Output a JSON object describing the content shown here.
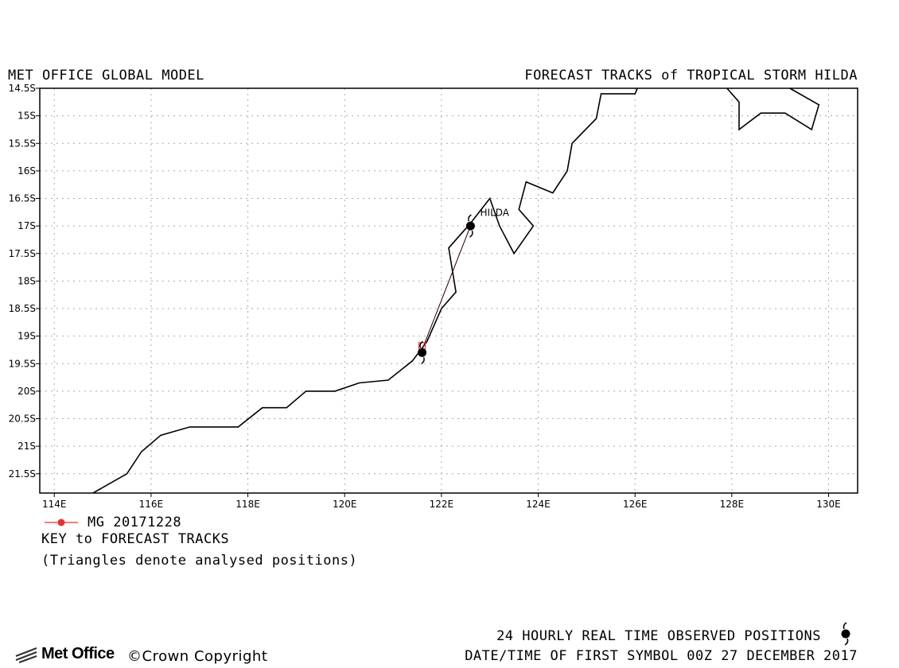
{
  "header": {
    "left": "MET OFFICE GLOBAL MODEL",
    "right": "FORECAST TRACKS of TROPICAL STORM HILDA"
  },
  "chart_data": {
    "type": "map",
    "xlim": [
      113.7,
      130.6
    ],
    "ylim": [
      -21.85,
      -14.5
    ],
    "x_ticks": [
      114,
      116,
      118,
      120,
      122,
      124,
      126,
      128,
      130
    ],
    "x_tick_labels": [
      "114E",
      "116E",
      "118E",
      "120E",
      "122E",
      "124E",
      "126E",
      "128E",
      "130E"
    ],
    "y_ticks": [
      -14.5,
      -15,
      -15.5,
      -16,
      -16.5,
      -17,
      -17.5,
      -18,
      -18.5,
      -19,
      -19.5,
      -20,
      -20.5,
      -21,
      -21.5
    ],
    "y_tick_labels": [
      "14.5S",
      "15S",
      "15.5S",
      "16S",
      "16.5S",
      "17S",
      "17.5S",
      "18S",
      "18.5S",
      "19S",
      "19.5S",
      "20S",
      "20.5S",
      "21S",
      "21.5S"
    ],
    "grid": true,
    "coastline": [
      [
        [
          114.8,
          -21.85
        ],
        [
          115.1,
          -21.7
        ],
        [
          115.5,
          -21.5
        ],
        [
          115.8,
          -21.1
        ],
        [
          116.2,
          -20.8
        ],
        [
          116.8,
          -20.65
        ],
        [
          117.8,
          -20.65
        ],
        [
          118.3,
          -20.3
        ],
        [
          118.8,
          -20.3
        ],
        [
          119.2,
          -20.0
        ],
        [
          119.8,
          -20.0
        ],
        [
          120.3,
          -19.85
        ],
        [
          120.9,
          -19.8
        ],
        [
          121.4,
          -19.45
        ],
        [
          121.7,
          -19.1
        ],
        [
          122.0,
          -18.5
        ],
        [
          122.3,
          -18.2
        ],
        [
          122.15,
          -17.4
        ],
        [
          122.6,
          -16.95
        ],
        [
          123.0,
          -16.5
        ],
        [
          123.2,
          -17.0
        ],
        [
          123.5,
          -17.5
        ],
        [
          123.9,
          -17.0
        ],
        [
          123.6,
          -16.7
        ],
        [
          123.75,
          -16.2
        ],
        [
          124.3,
          -16.4
        ],
        [
          124.6,
          -16.0
        ],
        [
          124.7,
          -15.5
        ],
        [
          125.2,
          -15.05
        ],
        [
          125.3,
          -14.6
        ],
        [
          126.0,
          -14.6
        ],
        [
          126.05,
          -14.5
        ]
      ],
      [
        [
          127.9,
          -14.5
        ],
        [
          128.15,
          -14.75
        ],
        [
          128.15,
          -15.25
        ],
        [
          128.6,
          -14.95
        ],
        [
          129.1,
          -14.95
        ],
        [
          129.65,
          -15.25
        ],
        [
          129.8,
          -14.8
        ],
        [
          129.2,
          -14.5
        ]
      ]
    ],
    "series": [
      {
        "name": "MG 20171228",
        "color": "#e83030",
        "points": [
          [
            122.6,
            -17.0
          ],
          [
            121.6,
            -19.25
          ]
        ]
      }
    ],
    "observed_positions": [
      {
        "lon": 122.6,
        "lat": -17.0
      },
      {
        "lon": 121.6,
        "lat": -19.3
      }
    ],
    "storm_label": {
      "text": "HILDA",
      "lon": 122.8,
      "lat": -16.82
    }
  },
  "key": {
    "entry": "MG 20171228",
    "title": "KEY to FORECAST TRACKS",
    "note": "(Triangles denote analysed positions)"
  },
  "footer": {
    "observed_label": "24 HOURLY REAL TIME OBSERVED POSITIONS",
    "first_symbol": "DATE/TIME OF FIRST SYMBOL 00Z 27 DECEMBER 2017",
    "logo_text": "Met Office",
    "copyright": "©Crown Copyright"
  },
  "colors": {
    "forecast_track": "#e83030",
    "coast": "#000000",
    "grid": "#aaaaaa"
  },
  "icons": {
    "cyclone": "cyclone-icon",
    "logo": "met-office-logo-icon"
  }
}
